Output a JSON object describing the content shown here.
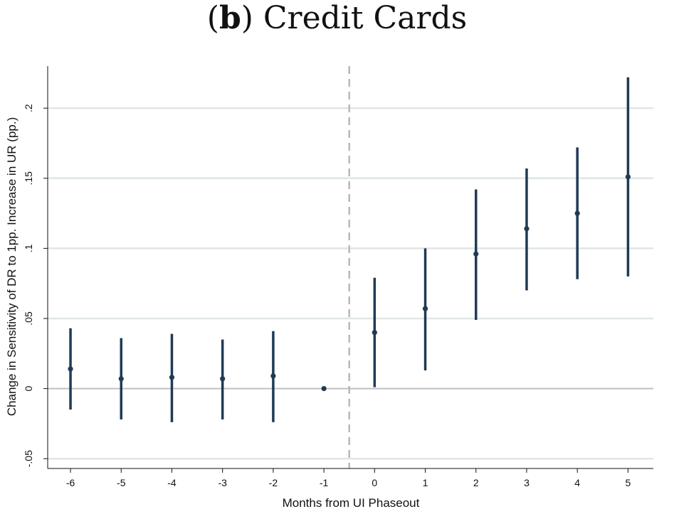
{
  "title": {
    "panel": "b",
    "text": "Credit Cards"
  },
  "chart_data": {
    "type": "scatter",
    "xlabel": "Months from UI Phaseout",
    "ylabel": "Change in Sensitivity of DR to 1pp. Increase in UR (pp.)",
    "x_ticks": [
      "-6",
      "-5",
      "-4",
      "-3",
      "-2",
      "-1",
      "0",
      "1",
      "2",
      "3",
      "4",
      "5"
    ],
    "y_ticks": [
      {
        "value": -0.05,
        "label": "-.05"
      },
      {
        "value": 0,
        "label": "0"
      },
      {
        "value": 0.05,
        "label": ".05"
      },
      {
        "value": 0.1,
        "label": ".1"
      },
      {
        "value": 0.15,
        "label": ".15"
      },
      {
        "value": 0.2,
        "label": ".2"
      }
    ],
    "xlim": [
      -6.45,
      5.5
    ],
    "ylim": [
      -0.057,
      0.23
    ],
    "grid": true,
    "reference_line_x": -0.5,
    "points": [
      {
        "x": -6,
        "y": 0.014,
        "lo": -0.015,
        "hi": 0.043
      },
      {
        "x": -5,
        "y": 0.007,
        "lo": -0.022,
        "hi": 0.036
      },
      {
        "x": -4,
        "y": 0.008,
        "lo": -0.024,
        "hi": 0.039
      },
      {
        "x": -3,
        "y": 0.007,
        "lo": -0.022,
        "hi": 0.035
      },
      {
        "x": -2,
        "y": 0.009,
        "lo": -0.024,
        "hi": 0.041
      },
      {
        "x": -1,
        "y": 0.0,
        "lo": 0.0,
        "hi": 0.0
      },
      {
        "x": 0,
        "y": 0.04,
        "lo": 0.001,
        "hi": 0.079
      },
      {
        "x": 1,
        "y": 0.057,
        "lo": 0.013,
        "hi": 0.1
      },
      {
        "x": 2,
        "y": 0.096,
        "lo": 0.049,
        "hi": 0.142
      },
      {
        "x": 3,
        "y": 0.114,
        "lo": 0.07,
        "hi": 0.157
      },
      {
        "x": 4,
        "y": 0.125,
        "lo": 0.078,
        "hi": 0.172
      },
      {
        "x": 5,
        "y": 0.151,
        "lo": 0.08,
        "hi": 0.222
      }
    ],
    "colors": {
      "marker": "#1f3a56",
      "grid": "#dfe6e6",
      "zero_line": "#c0c0c0",
      "reference": "#b8b8b8"
    }
  }
}
